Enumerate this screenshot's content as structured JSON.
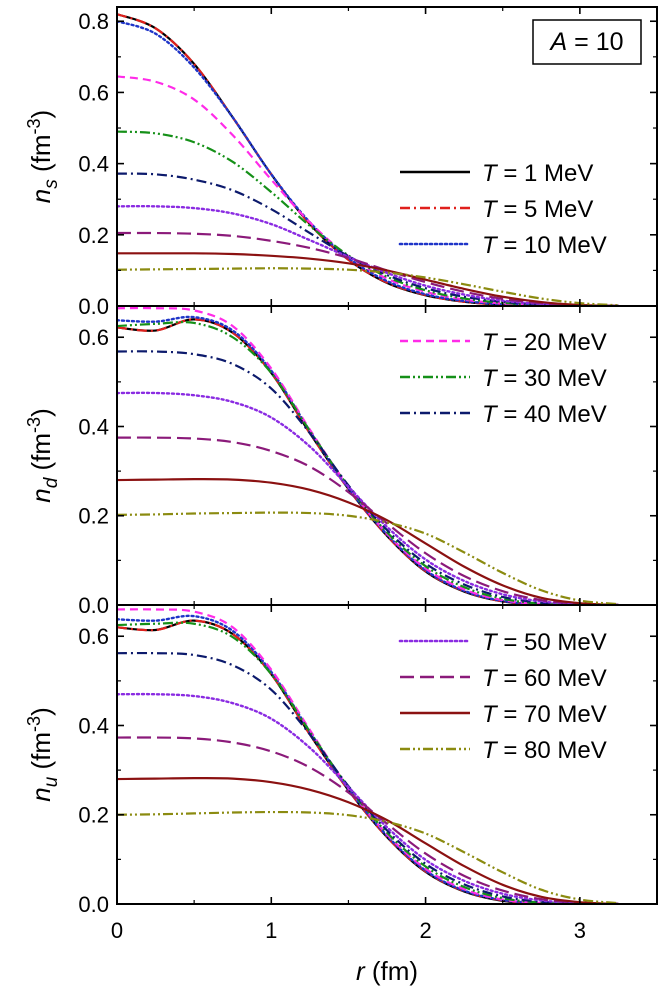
{
  "chart_data": {
    "type": "line",
    "annotation": {
      "prefix": "A",
      "eq": " = ",
      "value": "10"
    },
    "xlabel": {
      "var": "r",
      "unit": " (fm)"
    },
    "xlim": [
      0,
      3.5
    ],
    "xticks": [
      "0",
      "1",
      "2",
      "3"
    ],
    "series_meta": [
      {
        "name": "T = 1 MeV",
        "T_var": "T",
        "T_text": " = 1 MeV",
        "color": "#000000",
        "dash": "solid"
      },
      {
        "name": "T = 5 MeV",
        "T_var": "T",
        "T_text": " = 5 MeV",
        "color": "#e0201c",
        "dash": "dashdot"
      },
      {
        "name": "T = 10 MeV",
        "T_var": "T",
        "T_text": " = 10 MeV",
        "color": "#1f35c8",
        "dash": "dot"
      },
      {
        "name": "T = 20 MeV",
        "T_var": "T",
        "T_text": " = 20 MeV",
        "color": "#ff2be8",
        "dash": "dash"
      },
      {
        "name": "T = 30 MeV",
        "T_var": "T",
        "T_text": " = 30 MeV",
        "color": "#159018",
        "dash": "dashdotdot"
      },
      {
        "name": "T = 40 MeV",
        "T_var": "T",
        "T_text": " = 40 MeV",
        "color": "#0c1a6c",
        "dash": "dashdot"
      },
      {
        "name": "T = 50 MeV",
        "T_var": "T",
        "T_text": " = 50 MeV",
        "color": "#8a2be2",
        "dash": "dot"
      },
      {
        "name": "T = 60 MeV",
        "T_var": "T",
        "T_text": " = 60 MeV",
        "color": "#8b1a7a",
        "dash": "longdash"
      },
      {
        "name": "T = 70 MeV",
        "T_var": "T",
        "T_text": " = 70 MeV",
        "color": "#8b1111",
        "dash": "solid"
      },
      {
        "name": "T = 80 MeV",
        "T_var": "T",
        "T_text": " = 80 MeV",
        "color": "#8b8b10",
        "dash": "dashdotdot"
      }
    ],
    "x": [
      0,
      0.25,
      0.5,
      0.75,
      1.0,
      1.25,
      1.5,
      1.75,
      2.0,
      2.25,
      2.5,
      2.75,
      3.0,
      3.25
    ],
    "panels": [
      {
        "ylabel": {
          "var": "n",
          "sub": "s",
          "unit": " (fm",
          "exp": "-3",
          "close": ")"
        },
        "ylim": [
          0,
          0.84
        ],
        "yticks": [
          "0.0",
          "0.2",
          "0.4",
          "0.6",
          "0.8"
        ],
        "legend_entries": [
          0,
          1,
          2
        ],
        "series": [
          {
            "name": "T = 1 MeV",
            "values": [
              0.82,
              0.78,
              0.68,
              0.53,
              0.37,
              0.23,
              0.13,
              0.065,
              0.03,
              0.012,
              0.004,
              0.001,
              0.0,
              0.0
            ]
          },
          {
            "name": "T = 5 MeV",
            "values": [
              0.82,
              0.78,
              0.68,
              0.53,
              0.37,
              0.23,
              0.13,
              0.066,
              0.031,
              0.012,
              0.004,
              0.001,
              0.0,
              0.0
            ]
          },
          {
            "name": "T = 10 MeV",
            "values": [
              0.8,
              0.765,
              0.67,
              0.53,
              0.37,
              0.235,
              0.135,
              0.07,
              0.033,
              0.014,
              0.005,
              0.0015,
              0.0,
              0.0
            ]
          },
          {
            "name": "T = 20 MeV",
            "values": [
              0.645,
              0.63,
              0.58,
              0.48,
              0.355,
              0.235,
              0.14,
              0.077,
              0.04,
              0.018,
              0.007,
              0.002,
              0.0005,
              0.0
            ]
          },
          {
            "name": "T = 30 MeV",
            "values": [
              0.49,
              0.485,
              0.46,
              0.405,
              0.32,
              0.225,
              0.142,
              0.082,
              0.044,
              0.021,
              0.009,
              0.003,
              0.001,
              0.0
            ]
          },
          {
            "name": "T = 40 MeV",
            "values": [
              0.372,
              0.37,
              0.355,
              0.325,
              0.272,
              0.205,
              0.14,
              0.087,
              0.05,
              0.026,
              0.012,
              0.004,
              0.001,
              0.0
            ]
          },
          {
            "name": "T = 50 MeV",
            "values": [
              0.28,
              0.28,
              0.275,
              0.26,
              0.23,
              0.185,
              0.138,
              0.093,
              0.057,
              0.032,
              0.015,
              0.006,
              0.002,
              0.0
            ]
          },
          {
            "name": "T = 60 MeV",
            "values": [
              0.205,
              0.205,
              0.203,
              0.197,
              0.183,
              0.163,
              0.135,
              0.1,
              0.067,
              0.04,
              0.02,
              0.008,
              0.002,
              0.0
            ]
          },
          {
            "name": "T = 70 MeV",
            "values": [
              0.148,
              0.148,
              0.148,
              0.146,
              0.141,
              0.133,
              0.12,
              0.1,
              0.074,
              0.048,
              0.026,
              0.011,
              0.003,
              0.0
            ]
          },
          {
            "name": "T = 80 MeV",
            "values": [
              0.102,
              0.103,
              0.104,
              0.105,
              0.106,
              0.105,
              0.102,
              0.094,
              0.08,
              0.061,
              0.04,
              0.021,
              0.008,
              0.002
            ]
          }
        ]
      },
      {
        "ylabel": {
          "var": "n",
          "sub": "d",
          "unit": " (fm",
          "exp": "-3",
          "close": ")"
        },
        "ylim": [
          0,
          0.67
        ],
        "yticks": [
          "0.0",
          "0.2",
          "0.4",
          "0.6"
        ],
        "legend_entries": [
          3,
          4,
          5
        ],
        "series": [
          {
            "name": "T = 1 MeV",
            "values": [
              0.622,
              0.615,
              0.64,
              0.61,
              0.52,
              0.385,
              0.26,
              0.155,
              0.075,
              0.03,
              0.008,
              0.001,
              0.0,
              0.0
            ]
          },
          {
            "name": "T = 5 MeV",
            "values": [
              0.622,
              0.615,
              0.64,
              0.61,
              0.52,
              0.385,
              0.26,
              0.155,
              0.076,
              0.031,
              0.008,
              0.001,
              0.0,
              0.0
            ]
          },
          {
            "name": "T = 10 MeV",
            "values": [
              0.638,
              0.635,
              0.645,
              0.615,
              0.525,
              0.39,
              0.262,
              0.158,
              0.078,
              0.032,
              0.009,
              0.002,
              0.0,
              0.0
            ]
          },
          {
            "name": "T = 20 MeV",
            "values": [
              0.665,
              0.665,
              0.66,
              0.625,
              0.53,
              0.393,
              0.265,
              0.16,
              0.082,
              0.035,
              0.011,
              0.002,
              0.0,
              0.0
            ]
          },
          {
            "name": "T = 30 MeV",
            "values": [
              0.625,
              0.63,
              0.632,
              0.6,
              0.52,
              0.39,
              0.266,
              0.163,
              0.087,
              0.04,
              0.014,
              0.003,
              0.0,
              0.0
            ]
          },
          {
            "name": "T = 40 MeV",
            "values": [
              0.568,
              0.568,
              0.562,
              0.54,
              0.485,
              0.385,
              0.268,
              0.168,
              0.093,
              0.046,
              0.018,
              0.005,
              0.001,
              0.0
            ]
          },
          {
            "name": "T = 50 MeV",
            "values": [
              0.475,
              0.475,
              0.47,
              0.455,
              0.42,
              0.355,
              0.265,
              0.175,
              0.102,
              0.054,
              0.024,
              0.008,
              0.002,
              0.0
            ]
          },
          {
            "name": "T = 60 MeV",
            "values": [
              0.375,
              0.375,
              0.373,
              0.365,
              0.345,
              0.31,
              0.253,
              0.183,
              0.116,
              0.065,
              0.031,
              0.011,
              0.003,
              0.0
            ]
          },
          {
            "name": "T = 70 MeV",
            "values": [
              0.28,
              0.281,
              0.282,
              0.281,
              0.274,
              0.258,
              0.23,
              0.19,
              0.138,
              0.086,
              0.044,
              0.016,
              0.004,
              0.0
            ]
          },
          {
            "name": "T = 80 MeV",
            "values": [
              0.202,
              0.203,
              0.205,
              0.206,
              0.207,
              0.206,
              0.2,
              0.185,
              0.16,
              0.118,
              0.072,
              0.033,
              0.01,
              0.002
            ]
          }
        ]
      },
      {
        "ylabel": {
          "var": "n",
          "sub": "u",
          "unit": " (fm",
          "exp": "-3",
          "close": ")"
        },
        "ylim": [
          0,
          0.67
        ],
        "yticks": [
          "0.0",
          "0.2",
          "0.4",
          "0.6"
        ],
        "legend_entries": [
          6,
          7,
          8,
          9
        ],
        "series": [
          {
            "name": "T = 1 MeV",
            "values": [
              0.62,
              0.614,
              0.635,
              0.605,
              0.515,
              0.38,
              0.255,
              0.15,
              0.072,
              0.028,
              0.007,
              0.001,
              0.0,
              0.0
            ]
          },
          {
            "name": "T = 5 MeV",
            "values": [
              0.62,
              0.614,
              0.635,
              0.605,
              0.515,
              0.38,
              0.255,
              0.15,
              0.073,
              0.029,
              0.008,
              0.001,
              0.0,
              0.0
            ]
          },
          {
            "name": "T = 10 MeV",
            "values": [
              0.638,
              0.635,
              0.645,
              0.612,
              0.52,
              0.386,
              0.258,
              0.153,
              0.075,
              0.03,
              0.009,
              0.002,
              0.0,
              0.0
            ]
          },
          {
            "name": "T = 20 MeV",
            "values": [
              0.66,
              0.66,
              0.655,
              0.62,
              0.525,
              0.39,
              0.26,
              0.156,
              0.079,
              0.033,
              0.01,
              0.002,
              0.0,
              0.0
            ]
          },
          {
            "name": "T = 30 MeV",
            "values": [
              0.625,
              0.628,
              0.628,
              0.598,
              0.515,
              0.386,
              0.262,
              0.16,
              0.084,
              0.038,
              0.013,
              0.003,
              0.0,
              0.0
            ]
          },
          {
            "name": "T = 40 MeV",
            "values": [
              0.562,
              0.562,
              0.558,
              0.535,
              0.48,
              0.38,
              0.264,
              0.165,
              0.09,
              0.044,
              0.017,
              0.005,
              0.001,
              0.0
            ]
          },
          {
            "name": "T = 50 MeV",
            "values": [
              0.47,
              0.47,
              0.466,
              0.45,
              0.415,
              0.35,
              0.262,
              0.172,
              0.099,
              0.052,
              0.023,
              0.008,
              0.002,
              0.0
            ]
          },
          {
            "name": "T = 60 MeV",
            "values": [
              0.373,
              0.373,
              0.371,
              0.362,
              0.342,
              0.306,
              0.25,
              0.18,
              0.113,
              0.063,
              0.03,
              0.011,
              0.003,
              0.0
            ]
          },
          {
            "name": "T = 70 MeV",
            "values": [
              0.28,
              0.281,
              0.282,
              0.281,
              0.273,
              0.256,
              0.228,
              0.188,
              0.136,
              0.085,
              0.043,
              0.016,
              0.004,
              0.0
            ]
          },
          {
            "name": "T = 80 MeV",
            "values": [
              0.2,
              0.201,
              0.203,
              0.205,
              0.206,
              0.205,
              0.199,
              0.184,
              0.158,
              0.116,
              0.071,
              0.032,
              0.01,
              0.002
            ]
          }
        ]
      }
    ]
  }
}
